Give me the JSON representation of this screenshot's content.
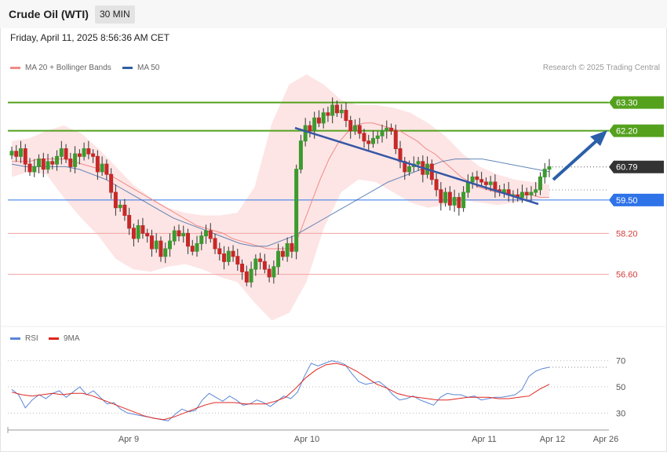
{
  "header": {
    "title": "Crude Oil (WTI)",
    "interval": "30 MIN",
    "datetime": "Friday, April 11, 2025 8:56:36 AM CET"
  },
  "credit": "Research © 2025 Trading Central",
  "legend_main": [
    {
      "label": "MA 20 + Bollinger Bands",
      "color": "#f08a86"
    },
    {
      "label": "MA 50",
      "color": "#2e5fa3"
    }
  ],
  "legend_rsi": [
    {
      "label": "RSI",
      "color": "#5b86d6"
    },
    {
      "label": "9MA",
      "color": "#e0261f"
    }
  ],
  "colors": {
    "up": "#3c9a2f",
    "down": "#c62828",
    "resistance": "#54a11e",
    "support": "#f2a3a3",
    "pivot": "#2f73e8",
    "trend": "#3557a6",
    "target": "#2b5fa8",
    "current": "#333333",
    "bands": "#fde0e0"
  },
  "chart_data": [
    {
      "type": "candlestick",
      "title": "Crude Oil (WTI)",
      "ylim": [
        54.6,
        64.3
      ],
      "x_ticks": [
        "Apr 9",
        "Apr 10",
        "Apr 11",
        "Apr 12",
        "Apr 26"
      ],
      "levels": [
        {
          "value": 63.3,
          "label": "63.30",
          "kind": "resistance"
        },
        {
          "value": 62.2,
          "label": "62.20",
          "kind": "resistance"
        },
        {
          "value": 60.79,
          "label": "60.79",
          "kind": "current"
        },
        {
          "value": 59.5,
          "label": "59.50",
          "kind": "pivot"
        },
        {
          "value": 58.2,
          "label": "58.20",
          "kind": "support"
        },
        {
          "value": 56.6,
          "label": "56.60",
          "kind": "support"
        }
      ],
      "closes": [
        61.4,
        61.2,
        61.5,
        60.9,
        60.6,
        60.8,
        61.1,
        60.7,
        61.0,
        60.9,
        61.2,
        61.5,
        61.1,
        60.8,
        61.3,
        61.2,
        61.5,
        61.3,
        61.2,
        60.6,
        60.9,
        60.5,
        59.8,
        59.2,
        59.3,
        58.9,
        58.4,
        58.0,
        58.5,
        58.2,
        58.1,
        57.6,
        57.9,
        57.3,
        57.6,
        57.9,
        58.3,
        58.1,
        58.2,
        57.7,
        57.5,
        57.8,
        58.1,
        58.3,
        58.0,
        57.6,
        57.4,
        57.1,
        57.5,
        57.3,
        57.0,
        56.7,
        56.3,
        56.8,
        57.2,
        57.1,
        56.8,
        56.5,
        56.9,
        57.5,
        57.3,
        57.8,
        57.5,
        60.7,
        61.8,
        62.4,
        62.2,
        62.7,
        62.5,
        62.9,
        62.8,
        63.2,
        62.9,
        63.0,
        62.6,
        62.2,
        62.4,
        62.1,
        61.8,
        61.7,
        61.9,
        62.0,
        62.2,
        62.3,
        62.2,
        61.5,
        61.0,
        60.6,
        60.8,
        60.9,
        61.0,
        60.5,
        60.9,
        60.3,
        59.9,
        59.4,
        59.8,
        59.3,
        59.6,
        59.2,
        59.8,
        60.2,
        60.4,
        60.3,
        60.2,
        60.1,
        60.2,
        59.9,
        59.8,
        59.9,
        59.7,
        59.7,
        59.6,
        59.8,
        59.7,
        59.8,
        59.9,
        60.4,
        60.7,
        60.8
      ],
      "ma20": [
        61.0,
        61.0,
        61.0,
        61.1,
        61.1,
        61.1,
        61.1,
        61.0,
        60.9,
        60.8,
        60.7,
        60.5,
        60.3,
        60.1,
        59.9,
        59.7,
        59.5,
        59.3,
        59.1,
        58.9,
        58.7,
        58.5,
        58.4,
        58.3,
        58.2,
        58.0,
        57.9,
        57.8,
        57.7,
        57.6,
        57.6,
        57.6,
        57.6,
        58.5,
        59.4,
        60.3,
        61.1,
        61.7,
        62.1,
        62.4,
        62.5,
        62.5,
        62.4,
        62.3,
        62.2,
        62.0,
        61.8,
        61.5,
        61.3,
        61.0,
        60.7,
        60.4,
        60.2,
        60.0,
        59.9,
        59.8,
        59.8,
        59.7,
        59.7,
        59.7,
        59.6,
        59.6
      ],
      "ma50": [
        60.9,
        60.8,
        60.8,
        60.8,
        60.8,
        60.7,
        60.5,
        60.3,
        60.0,
        59.7,
        59.4,
        59.1,
        58.8,
        58.6,
        58.4,
        58.2,
        58.0,
        57.8,
        57.7,
        57.7,
        57.9,
        58.1,
        58.4,
        58.7,
        59.0,
        59.3,
        59.6,
        59.9,
        60.2,
        60.4,
        60.6,
        60.8,
        61.0,
        61.1,
        61.1,
        61.1,
        61.0,
        60.9,
        60.8,
        60.7,
        60.6
      ],
      "bb_upper": [
        61.8,
        61.9,
        62.2,
        62.4,
        62.1,
        61.5,
        60.8,
        60.1,
        59.6,
        59.2,
        59.0,
        58.9,
        58.9,
        59.0,
        60.0,
        62.5,
        64.0,
        64.4,
        64.0,
        63.4,
        63.2,
        63.2,
        63.1,
        62.9,
        62.5,
        62.0,
        61.3,
        60.8,
        60.5,
        60.3,
        60.2,
        60.1
      ],
      "bb_lower": [
        60.4,
        60.6,
        60.5,
        59.6,
        58.8,
        58.1,
        57.2,
        56.8,
        56.7,
        56.9,
        57.0,
        56.8,
        56.5,
        56.3,
        55.5,
        54.8,
        55.1,
        56.3,
        58.4,
        59.8,
        60.3,
        60.2,
        59.8,
        59.4,
        59.2,
        59.3,
        59.5,
        59.4,
        59.3,
        59.4,
        59.5,
        59.6
      ]
    },
    {
      "type": "line",
      "title": "",
      "ylim": [
        20,
        80
      ],
      "y_ticks": [
        30,
        50,
        70
      ],
      "series": [
        {
          "name": "RSI",
          "values": [
            48,
            44,
            34,
            40,
            44,
            41,
            45,
            47,
            42,
            46,
            50,
            44,
            47,
            42,
            37,
            38,
            33,
            30,
            29,
            28,
            27,
            26,
            25,
            24,
            29,
            33,
            31,
            32,
            40,
            45,
            42,
            39,
            43,
            40,
            36,
            37,
            40,
            38,
            35,
            39,
            43,
            41,
            46,
            58,
            68,
            66,
            68,
            70,
            69,
            67,
            60,
            54,
            52,
            53,
            54,
            50,
            44,
            40,
            41,
            43,
            40,
            38,
            36,
            42,
            45,
            44,
            44,
            42,
            43,
            40,
            41,
            42,
            42,
            43,
            44,
            48,
            58,
            62,
            64,
            65
          ]
        },
        {
          "name": "9MA",
          "values": [
            46,
            44,
            43,
            44,
            45,
            44,
            45,
            45,
            43,
            40,
            37,
            34,
            31,
            28,
            26,
            25,
            27,
            30,
            33,
            36,
            38,
            38,
            38,
            37,
            37,
            37,
            39,
            42,
            49,
            57,
            63,
            67,
            68,
            66,
            62,
            57,
            52,
            49,
            45,
            43,
            42,
            41,
            40,
            40,
            41,
            42,
            42,
            42,
            41,
            41,
            42,
            43,
            48,
            52
          ]
        }
      ]
    }
  ]
}
